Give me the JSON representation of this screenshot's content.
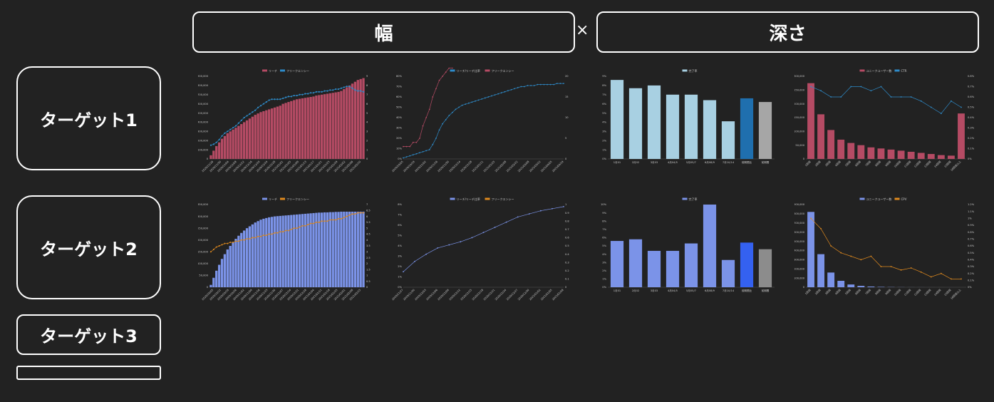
{
  "header": {
    "width_label": "幅",
    "times": "×",
    "depth_label": "深さ"
  },
  "targets": [
    "ターゲット1",
    "ターゲット2",
    "ターゲット3",
    ""
  ],
  "colors": {
    "bg": "#222222",
    "red": "#b54b64",
    "blue": "#2e8bc9",
    "lightblue": "#a8d0e2",
    "navy": "#1f6fae",
    "gray": "#a6a6a6",
    "periwinkle": "#7b93e8",
    "royal": "#3461f0",
    "orange": "#e08a1e",
    "gray2": "#8c8c8c"
  },
  "chart_data": [
    {
      "id": "t1-width",
      "type": "bar+line",
      "legend": [
        "リーチ",
        "フリークエンシー"
      ],
      "ylim": [
        0,
        900000
      ],
      "y2lim": [
        0,
        9
      ],
      "yticks": [
        "0",
        "100,000",
        "200,000",
        "300,000",
        "400,000",
        "500,000",
        "600,000",
        "700,000",
        "800,000",
        "900,000"
      ],
      "y2ticks": [
        "0",
        "1",
        "2",
        "3",
        "4",
        "5",
        "6",
        "7",
        "8",
        "9"
      ],
      "bar_values": [
        40000,
        90000,
        140000,
        180000,
        220000,
        250000,
        280000,
        300000,
        320000,
        340000,
        360000,
        380000,
        400000,
        420000,
        440000,
        460000,
        480000,
        495000,
        510000,
        520000,
        530000,
        540000,
        550000,
        560000,
        570000,
        580000,
        600000,
        610000,
        620000,
        630000,
        640000,
        650000,
        655000,
        660000,
        665000,
        670000,
        675000,
        680000,
        690000,
        695000,
        700000,
        705000,
        710000,
        715000,
        720000,
        725000,
        730000,
        740000,
        760000,
        780000,
        800000,
        820000,
        840000,
        860000,
        870000,
        880000
      ],
      "line_values": [
        1.5,
        1.6,
        1.8,
        2.1,
        2.5,
        2.8,
        3.0,
        3.2,
        3.4,
        3.6,
        3.9,
        4.2,
        4.5,
        4.7,
        4.9,
        5.1,
        5.3,
        5.6,
        5.8,
        6.0,
        6.2,
        6.4,
        6.5,
        6.5,
        6.5,
        6.5,
        6.6,
        6.7,
        6.8,
        6.8,
        6.9,
        6.9,
        7.0,
        7.0,
        7.1,
        7.1,
        7.2,
        7.2,
        7.3,
        7.3,
        7.3,
        7.4,
        7.4,
        7.5,
        7.5,
        7.6,
        7.6,
        7.7,
        7.8,
        7.9,
        7.9,
        7.7,
        7.5,
        7.4,
        7.4,
        7.3
      ],
      "xlabels": [
        "2020/11/26",
        "2020/11/30",
        "2020/12/04",
        "2020/12/08",
        "2020/12/12",
        "2020/12/16",
        "2020/12/20",
        "2020/12/24",
        "2020/12/28",
        "2021/01/01",
        "2021/01/05",
        "2021/01/09",
        "2021/01/13",
        "2021/01/17",
        "2021/01/21",
        "2021/01/25",
        "2021/01/29",
        "2021/02/02",
        "2021/02/06",
        "2021/02/10"
      ]
    },
    {
      "id": "t1-depth-scroll",
      "type": "line+line",
      "legend": [
        "リーチ/リーチ比率",
        "フリークエンシー"
      ],
      "ylim": [
        0,
        80
      ],
      "y2lim": [
        0,
        20
      ],
      "yticks": [
        "0%",
        "10%",
        "20%",
        "30%",
        "40%",
        "50%",
        "60%",
        "70%",
        "80%"
      ],
      "y2ticks": [
        "0",
        "5",
        "10",
        "15",
        "20"
      ],
      "series1": [
        1,
        2,
        3,
        4,
        5,
        6,
        7,
        8,
        9,
        14,
        20,
        28,
        34,
        38,
        42,
        45,
        48,
        50,
        52,
        53,
        54,
        55,
        56,
        57,
        58,
        59,
        60,
        61,
        62,
        63,
        64,
        65,
        66,
        67,
        68,
        69,
        70,
        70,
        71,
        71,
        71,
        72,
        72,
        72,
        72,
        72,
        72,
        73,
        73,
        73
      ],
      "series2": [
        3,
        3,
        3,
        4,
        4,
        5,
        8,
        10,
        12,
        15,
        17,
        19,
        20,
        21,
        22,
        22,
        23,
        23,
        24,
        24,
        24,
        25,
        25,
        25,
        25,
        25,
        26,
        26,
        26,
        26,
        27,
        27,
        27,
        27,
        28,
        28,
        28,
        28,
        28,
        29,
        29,
        29,
        29,
        29,
        29,
        29,
        29,
        29,
        29,
        29
      ],
      "xlabels": [
        "2020/10/05",
        "2020/10/19",
        "2020/11/02",
        "2020/11/16",
        "2020/11/30",
        "2020/12/14",
        "2020/12/28",
        "2021/01/11",
        "2021/01/25",
        "2021/02/08",
        "2021/02/22",
        "2021/03/08",
        "2021/03/22",
        "2021/04/05",
        "2021/04/19"
      ]
    },
    {
      "id": "t1-depth-bar",
      "type": "bar",
      "legend": [
        "完了率"
      ],
      "ylim": [
        0,
        9
      ],
      "yticks": [
        "0%",
        "1%",
        "2%",
        "3%",
        "4%",
        "5%",
        "6%",
        "7%",
        "8%",
        "9%"
      ],
      "values": [
        8.6,
        7.7,
        8.0,
        7.0,
        7.0,
        6.4,
        4.1,
        6.6,
        6.2
      ],
      "categories": [
        "1月01",
        "2月02",
        "3月03",
        "4月04/5",
        "5月05/7",
        "6月08/9",
        "7月10/14",
        "前期間比",
        "前期間"
      ],
      "bar_colors": [
        "#a8d0e2",
        "#a8d0e2",
        "#a8d0e2",
        "#a8d0e2",
        "#a8d0e2",
        "#a8d0e2",
        "#a8d0e2",
        "#1f6fae",
        "#a6a6a6"
      ]
    },
    {
      "id": "t1-depth-unique",
      "type": "bar+line",
      "legend": [
        "ユニークユーザー数",
        "CTR"
      ],
      "ylim": [
        0,
        300000
      ],
      "y2lim": [
        0,
        0.8
      ],
      "yticks": [
        "0",
        "50,000",
        "100,000",
        "150,000",
        "200,000",
        "250,000",
        "300,000"
      ],
      "y2ticks": [
        "0%",
        "0.1%",
        "0.2%",
        "0.3%",
        "0.4%",
        "0.5%",
        "0.6%",
        "0.7%",
        "0.8%"
      ],
      "values": [
        275000,
        162000,
        105000,
        70000,
        58000,
        50000,
        42000,
        38000,
        34000,
        30000,
        26000,
        22000,
        18000,
        14000,
        12000,
        165000
      ],
      "line_values": [
        0.7,
        0.66,
        0.6,
        0.6,
        0.7,
        0.7,
        0.66,
        0.7,
        0.6,
        0.6,
        0.6,
        0.56,
        0.5,
        0.44,
        0.56,
        0.5
      ],
      "categories": [
        "1回目",
        "2回目",
        "3回目",
        "4回目",
        "5回目",
        "6回目",
        "7回目",
        "8回目",
        "9回目",
        "10回目",
        "11回目",
        "12回目",
        "13回目",
        "14回目",
        "15回目",
        "16回目以上"
      ]
    },
    {
      "id": "t2-width",
      "type": "bar+line",
      "legend": [
        "リーチ",
        "フリークエンシー"
      ],
      "ylim": [
        0,
        350000
      ],
      "y2lim": [
        0,
        7
      ],
      "yticks": [
        "0",
        "50,000",
        "100,000",
        "150,000",
        "200,000",
        "250,000",
        "300,000",
        "350,000"
      ],
      "y2ticks": [
        "0",
        "0.5",
        "1",
        "1.5",
        "2",
        "2.5",
        "3",
        "3.5",
        "4",
        "4.5",
        "5",
        "5.5",
        "6",
        "6.5",
        "7"
      ],
      "bar_values": [
        10000,
        40000,
        70000,
        95000,
        120000,
        140000,
        160000,
        175000,
        190000,
        205000,
        218000,
        230000,
        240000,
        250000,
        258000,
        266000,
        274000,
        280000,
        286000,
        290000,
        293000,
        296000,
        298000,
        300000,
        301000,
        302000,
        303000,
        304000,
        305000,
        306000,
        307000,
        308000,
        309000,
        310000,
        311000,
        312000,
        313000,
        314000,
        315000,
        316000,
        316000,
        317000,
        317000,
        318000,
        318000,
        319000,
        319000,
        320000,
        320000,
        320000,
        320000,
        320000,
        320000,
        320000,
        320000,
        320000
      ],
      "line_values": [
        3.0,
        3.2,
        3.4,
        3.5,
        3.6,
        3.7,
        3.7,
        3.8,
        3.8,
        3.9,
        3.9,
        4.0,
        4.0,
        4.1,
        4.1,
        4.2,
        4.2,
        4.3,
        4.3,
        4.4,
        4.4,
        4.5,
        4.5,
        4.6,
        4.6,
        4.7,
        4.7,
        4.8,
        4.8,
        4.9,
        5.0,
        5.0,
        5.1,
        5.2,
        5.2,
        5.3,
        5.4,
        5.4,
        5.5,
        5.5,
        5.6,
        5.6,
        5.6,
        5.7,
        5.7,
        5.7,
        5.8,
        5.8,
        5.9,
        6.0,
        6.1,
        6.2,
        6.2,
        6.3,
        6.3,
        6.3
      ],
      "xlabels": [
        "2020/10/05",
        "2020/10/12",
        "2020/10/19",
        "2020/10/26",
        "2020/11/02",
        "2020/11/09",
        "2020/11/16",
        "2020/11/23",
        "2020/11/30",
        "2020/12/07",
        "2020/12/14",
        "2020/12/21",
        "2020/12/28",
        "2021/01/04",
        "2021/01/11",
        "2021/01/18",
        "2021/01/25",
        "2021/02/01",
        "2021/02/08",
        "2021/02/15"
      ]
    },
    {
      "id": "t2-depth-scroll",
      "type": "line+line",
      "legend": [
        "リーチ/リーチ比率",
        "フリークエンシー"
      ],
      "ylim": [
        0,
        8
      ],
      "y2lim": [
        0,
        1
      ],
      "yticks": [
        "0%",
        "1%",
        "2%",
        "3%",
        "4%",
        "5%",
        "6%",
        "7%",
        "8%"
      ],
      "y2ticks": [
        "0",
        "0.1",
        "0.2",
        "0.3",
        "0.4",
        "0.5",
        "0.6",
        "0.7",
        "0.8",
        "0.9",
        "1"
      ],
      "series1": [
        1.5,
        2.5,
        3.2,
        3.8,
        4.1,
        4.4,
        4.8,
        5.3,
        5.8,
        6.3,
        6.8,
        7.1,
        7.4,
        7.6,
        7.8
      ],
      "series2": [
        2.4,
        3.1,
        3.5,
        4.0,
        4.5,
        5.2,
        5.8,
        6.0,
        6.0,
        6.3,
        6.7,
        7.0,
        7.1,
        7.4,
        7.4
      ],
      "xlabels": [
        "2020/11/27",
        "2020/11/30",
        "2020/12/03",
        "2020/12/06",
        "2020/12/09",
        "2020/12/12",
        "2020/12/15",
        "2020/12/18",
        "2020/12/21",
        "2020/12/24",
        "2020/12/27",
        "2020/12/30",
        "2021/01/02",
        "2021/01/05",
        "2021/01/08"
      ]
    },
    {
      "id": "t2-depth-bar",
      "type": "bar",
      "legend": [
        "完了率"
      ],
      "ylim": [
        0,
        10
      ],
      "yticks": [
        "0%",
        "1%",
        "2%",
        "3%",
        "4%",
        "5%",
        "6%",
        "7%",
        "8%",
        "9%",
        "10%"
      ],
      "values": [
        5.6,
        5.8,
        4.4,
        4.4,
        5.3,
        10.0,
        3.3,
        5.4,
        4.6
      ],
      "categories": [
        "1月01",
        "2月02",
        "3月03",
        "4月04/5",
        "5月05/7",
        "6月08/9",
        "7月10/14",
        "前期間比",
        "前期間"
      ],
      "bar_colors": [
        "#7b93e8",
        "#7b93e8",
        "#7b93e8",
        "#7b93e8",
        "#7b93e8",
        "#7b93e8",
        "#7b93e8",
        "#3461f0",
        "#8c8c8c"
      ]
    },
    {
      "id": "t2-depth-unique",
      "type": "bar+line",
      "legend": [
        "ユニークユーザー数",
        "CPV"
      ],
      "ylim": [
        0,
        900000
      ],
      "y2lim": [
        0,
        1.2
      ],
      "yticks": [
        "0",
        "100,000",
        "200,000",
        "300,000",
        "400,000",
        "500,000",
        "600,000",
        "700,000",
        "800,000",
        "900,000"
      ],
      "y2ticks": [
        "0%",
        "0.1%",
        "0.2%",
        "0.3%",
        "0.4%",
        "0.5%",
        "0.6%",
        "0.7%",
        "0.8%",
        "0.9%",
        "1%",
        "1.1%",
        "1.2%"
      ],
      "values": [
        820000,
        360000,
        160000,
        70000,
        30000,
        15000,
        8000,
        4000,
        2000,
        1000,
        500,
        300,
        200,
        100,
        50,
        30
      ],
      "line_values": [
        1.0,
        0.85,
        0.6,
        0.5,
        0.45,
        0.4,
        0.45,
        0.3,
        0.3,
        0.25,
        0.28,
        0.22,
        0.15,
        0.2,
        0.12,
        0.12
      ],
      "categories": [
        "1回目",
        "2回目",
        "3回目",
        "4回目",
        "5回目",
        "6回目",
        "7回目",
        "8回目",
        "9回目",
        "10回目",
        "11回目",
        "12回目",
        "13回目",
        "14回目",
        "15回目",
        "16回目以上"
      ]
    }
  ]
}
